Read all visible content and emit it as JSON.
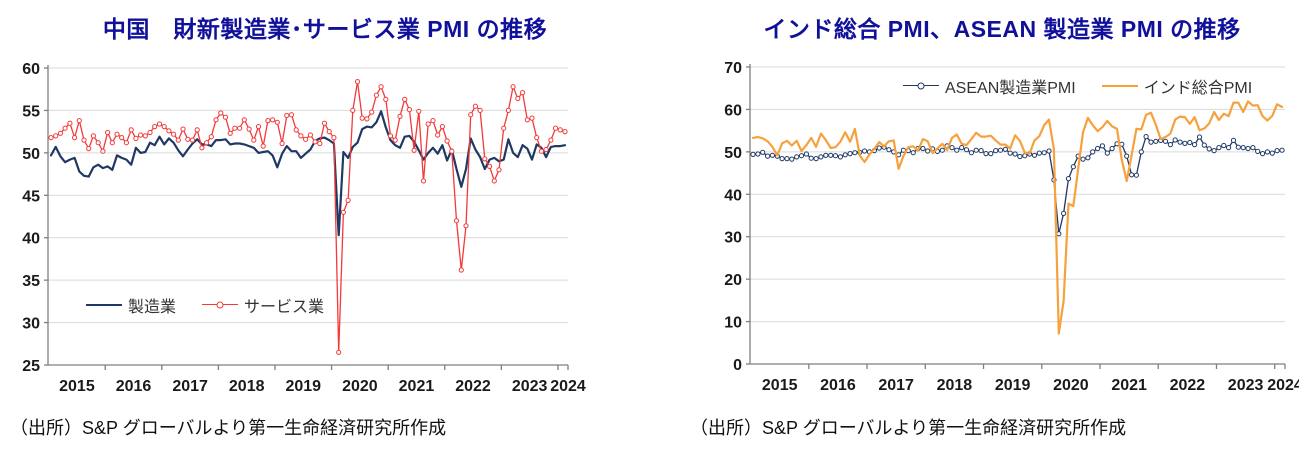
{
  "colors": {
    "title": "#10109b",
    "axis_text": "#1a1a1a",
    "grid": "#d9d9d9",
    "axis": "#7f7f7f",
    "cn_manufacturing": "#1f3864",
    "cn_services": "#f23a3a",
    "asean_manufacturing": "#1f3864",
    "india_composite": "#f7a13c"
  },
  "chart_data": [
    {
      "type": "line",
      "title": "中国　財新製造業･サービス業 PMI の推移",
      "source": "（出所）S&P グローバルより第一生命経済研究所作成",
      "legend_position": "inside-bottom-left",
      "x": {
        "freq": "monthly",
        "start": "2015-01",
        "end": "2024-02",
        "tick_labels": [
          "2015",
          "2016",
          "2017",
          "2018",
          "2019",
          "2020",
          "2021",
          "2022",
          "2023",
          "2024"
        ]
      },
      "y": {
        "min": 25,
        "max": 60,
        "step": 5,
        "ticks": [
          25,
          30,
          35,
          40,
          45,
          50,
          55,
          60
        ]
      },
      "series": [
        {
          "name": "製造業",
          "color": "#1f3864",
          "marker": false,
          "values": [
            49.7,
            50.7,
            49.6,
            48.9,
            49.2,
            49.4,
            47.8,
            47.3,
            47.2,
            48.3,
            48.6,
            48.2,
            48.4,
            48.0,
            49.7,
            49.4,
            49.2,
            48.6,
            50.6,
            50.0,
            50.1,
            51.2,
            50.9,
            51.9,
            51.0,
            51.7,
            51.2,
            50.3,
            49.6,
            50.4,
            51.1,
            51.6,
            51.0,
            51.0,
            50.8,
            51.5,
            51.5,
            51.6,
            51.0,
            51.1,
            51.1,
            51.0,
            50.8,
            50.6,
            50.0,
            50.1,
            50.2,
            49.7,
            48.3,
            49.9,
            50.8,
            50.2,
            50.2,
            49.4,
            49.9,
            50.4,
            51.4,
            51.7,
            51.8,
            51.5,
            51.1,
            40.3,
            50.1,
            49.4,
            50.7,
            51.2,
            52.8,
            53.1,
            53.0,
            53.6,
            54.9,
            53.0,
            51.5,
            50.9,
            50.6,
            51.9,
            52.0,
            51.3,
            50.3,
            49.2,
            50.0,
            50.6,
            49.9,
            50.9,
            49.1,
            50.4,
            48.1,
            46.0,
            48.1,
            51.7,
            50.4,
            49.5,
            48.1,
            49.2,
            49.4,
            49.0,
            49.2,
            51.6,
            50.0,
            49.5,
            50.9,
            50.5,
            49.2,
            51.0,
            50.6,
            49.5,
            50.7,
            50.8,
            50.8,
            50.9
          ]
        },
        {
          "name": "サービス業",
          "color": "#f23a3a",
          "marker": true,
          "values": [
            51.8,
            52.0,
            52.3,
            52.9,
            53.5,
            51.8,
            53.8,
            51.5,
            50.5,
            52.0,
            51.2,
            50.2,
            52.4,
            51.2,
            52.2,
            51.8,
            51.2,
            52.7,
            51.7,
            52.1,
            52.0,
            52.4,
            53.1,
            53.4,
            53.1,
            52.6,
            52.2,
            51.5,
            52.8,
            51.6,
            51.5,
            52.7,
            50.6,
            51.2,
            51.9,
            53.9,
            54.7,
            54.2,
            52.3,
            52.9,
            52.9,
            53.9,
            52.8,
            51.5,
            53.1,
            50.8,
            53.8,
            53.9,
            53.6,
            51.1,
            54.4,
            54.5,
            52.7,
            52.0,
            51.6,
            52.1,
            51.3,
            51.1,
            53.5,
            52.5,
            51.8,
            26.5,
            43.0,
            44.4,
            55.0,
            58.4,
            54.1,
            54.0,
            54.8,
            56.8,
            57.8,
            56.3,
            52.0,
            51.5,
            54.3,
            56.3,
            55.1,
            50.3,
            54.9,
            46.7,
            53.4,
            53.8,
            52.1,
            53.1,
            51.4,
            50.2,
            42.0,
            36.2,
            41.4,
            54.5,
            55.5,
            55.0,
            49.3,
            48.4,
            46.7,
            48.0,
            52.9,
            55.0,
            57.8,
            56.4,
            57.1,
            53.9,
            54.1,
            51.8,
            50.2,
            50.4,
            51.5,
            52.9,
            52.7,
            52.5
          ]
        }
      ]
    },
    {
      "type": "line",
      "title": "インド総合 PMI、ASEAN 製造業 PMI の推移",
      "source": "（出所）S&P グローバルより第一生命経済研究所作成",
      "legend_position": "inside-top-right",
      "x": {
        "freq": "monthly",
        "start": "2015-01",
        "end": "2024-02",
        "tick_labels": [
          "2015",
          "2016",
          "2017",
          "2018",
          "2019",
          "2020",
          "2021",
          "2022",
          "2023",
          "2024"
        ]
      },
      "y": {
        "min": 0,
        "max": 70,
        "step": 10,
        "ticks": [
          0,
          10,
          20,
          30,
          40,
          50,
          60,
          70
        ]
      },
      "series": [
        {
          "name": "ASEAN製造業PMI",
          "color": "#1f3864",
          "marker": true,
          "values": [
            49.4,
            49.5,
            49.9,
            49.0,
            49.2,
            49.0,
            48.4,
            48.4,
            48.3,
            48.8,
            49.1,
            49.5,
            48.5,
            48.4,
            48.8,
            49.2,
            49.2,
            49.1,
            48.8,
            49.3,
            49.6,
            49.8,
            49.9,
            50.2,
            50.0,
            50.3,
            50.9,
            51.1,
            50.5,
            50.0,
            49.3,
            50.4,
            50.3,
            49.8,
            50.8,
            50.8,
            50.2,
            50.7,
            50.1,
            50.4,
            51.4,
            51.0,
            50.4,
            51.0,
            50.5,
            49.8,
            50.4,
            50.3,
            49.6,
            49.6,
            50.3,
            50.4,
            50.6,
            49.7,
            49.5,
            48.9,
            49.1,
            49.5,
            49.2,
            49.7,
            49.8,
            50.2,
            43.4,
            30.7,
            35.5,
            43.7,
            46.5,
            49.0,
            48.3,
            48.6,
            50.0,
            50.8,
            51.4,
            49.7,
            50.8,
            51.9,
            51.8,
            49.0,
            44.6,
            44.5,
            50.0,
            53.6,
            52.3,
            52.5,
            52.7,
            52.5,
            51.7,
            52.8,
            52.3,
            52.0,
            52.2,
            51.7,
            53.5,
            51.6,
            50.7,
            50.3,
            51.0,
            51.5,
            51.0,
            52.7,
            51.1,
            51.0,
            50.8,
            51.0,
            50.1,
            49.6,
            50.0,
            49.7,
            50.3,
            50.4
          ]
        },
        {
          "name": "インド総合PMI",
          "color": "#f7a13c",
          "marker": false,
          "values": [
            53.3,
            53.5,
            53.2,
            52.5,
            51.2,
            49.2,
            52.0,
            52.6,
            51.5,
            52.6,
            50.2,
            51.6,
            53.3,
            51.2,
            54.3,
            52.8,
            50.9,
            51.1,
            52.4,
            54.6,
            52.4,
            55.4,
            49.1,
            47.6,
            49.4,
            50.7,
            52.3,
            51.3,
            52.5,
            52.7,
            46.0,
            49.0,
            51.1,
            51.3,
            50.3,
            53.0,
            52.5,
            49.7,
            50.8,
            51.9,
            50.4,
            53.3,
            54.1,
            51.9,
            51.6,
            53.0,
            54.5,
            53.6,
            53.6,
            53.8,
            52.7,
            51.7,
            51.7,
            50.8,
            53.9,
            52.6,
            49.8,
            49.6,
            52.7,
            53.7,
            56.3,
            57.6,
            50.6,
            7.2,
            14.8,
            37.8,
            37.2,
            46.0,
            54.6,
            58.0,
            56.3,
            54.9,
            55.8,
            57.3,
            56.0,
            55.4,
            48.1,
            43.1,
            49.2,
            55.4,
            55.3,
            58.7,
            59.2,
            56.4,
            53.0,
            53.5,
            54.3,
            57.6,
            58.3,
            58.2,
            56.6,
            58.2,
            55.1,
            55.5,
            56.7,
            59.4,
            57.5,
            59.0,
            58.4,
            61.6,
            61.6,
            59.4,
            61.9,
            60.9,
            61.0,
            58.4,
            57.4,
            58.5,
            61.2,
            60.6
          ]
        }
      ]
    }
  ]
}
